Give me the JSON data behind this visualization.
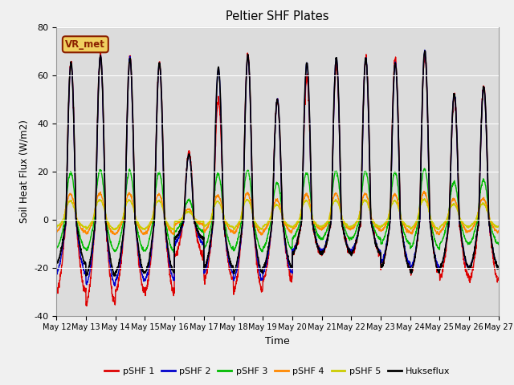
{
  "title": "Peltier SHF Plates",
  "xlabel": "Time",
  "ylabel": "Soil Heat Flux (W/m2)",
  "ylim": [
    -40,
    80
  ],
  "bg_color": "#dcdcdc",
  "fig_color": "#f0f0f0",
  "annotation_text": "VR_met",
  "annotation_bg": "#f0d060",
  "annotation_border": "#8B2000",
  "legend_entries": [
    "pSHF 1",
    "pSHF 2",
    "pSHF 3",
    "pSHF 4",
    "pSHF 5",
    "Hukseflux"
  ],
  "legend_colors": [
    "#dd0000",
    "#0000cc",
    "#00bb00",
    "#ff8800",
    "#cccc00",
    "#000000"
  ],
  "num_days": 15,
  "points_per_day": 144,
  "day_amps_huk": [
    65,
    68,
    67,
    65,
    27,
    63,
    68,
    50,
    65,
    67,
    67,
    65,
    70,
    52,
    55
  ],
  "day_amps_red": [
    65,
    68,
    67,
    65,
    28,
    50,
    68,
    50,
    59,
    64,
    67,
    67,
    68,
    51,
    55
  ],
  "day_neg_huk": [
    18,
    23,
    22,
    22,
    8,
    20,
    22,
    20,
    14,
    14,
    14,
    20,
    22,
    20,
    20
  ],
  "day_neg_red": [
    30,
    35,
    30,
    30,
    15,
    25,
    30,
    25,
    14,
    14,
    14,
    20,
    22,
    24,
    25
  ],
  "day_neg_blue": [
    22,
    27,
    25,
    25,
    10,
    22,
    25,
    22,
    13,
    13,
    13,
    18,
    20,
    20,
    20
  ],
  "day_neg_green": [
    12,
    13,
    13,
    13,
    5,
    12,
    13,
    12,
    8,
    8,
    8,
    10,
    12,
    10,
    10
  ],
  "day_neg_orange": [
    5,
    6,
    6,
    6,
    2,
    5,
    6,
    5,
    4,
    4,
    4,
    5,
    6,
    5,
    5
  ],
  "day_neg_yellow": [
    3,
    4,
    4,
    4,
    1,
    3,
    4,
    3,
    3,
    3,
    3,
    3,
    4,
    3,
    3
  ]
}
